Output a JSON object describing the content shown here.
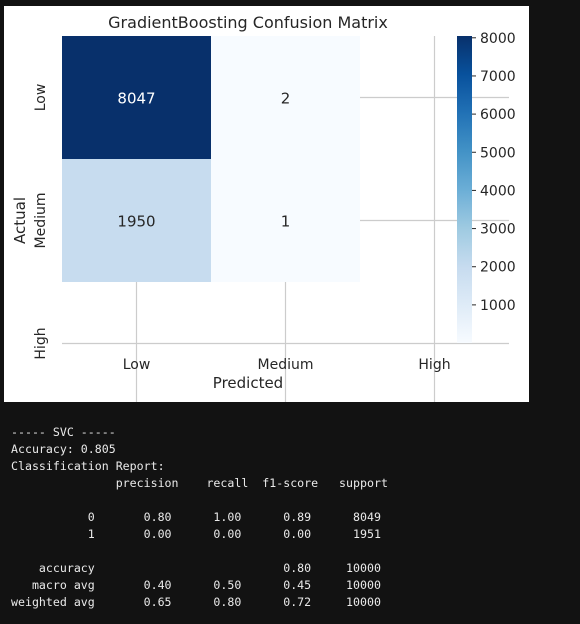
{
  "chart_data": {
    "type": "heatmap",
    "title": "GradientBoosting Confusion Matrix",
    "xlabel": "Predicted",
    "ylabel": "Actual",
    "x_categories": [
      "Low",
      "Medium",
      "High"
    ],
    "y_categories": [
      "Low",
      "Medium",
      "High"
    ],
    "cells": [
      {
        "row": "Low",
        "col": "Low",
        "value": 8047,
        "label": "8047"
      },
      {
        "row": "Low",
        "col": "Medium",
        "value": 2,
        "label": "2"
      },
      {
        "row": "Medium",
        "col": "Low",
        "value": 1950,
        "label": "1950"
      },
      {
        "row": "Medium",
        "col": "Medium",
        "value": 1,
        "label": "1"
      }
    ],
    "colorbar": {
      "colormap": "Blues",
      "min": 1,
      "max": 8047,
      "ticks": [
        1000,
        2000,
        3000,
        4000,
        5000,
        6000,
        7000,
        8000
      ],
      "tick_labels": [
        "1000",
        "2000",
        "3000",
        "4000",
        "5000",
        "6000",
        "7000",
        "8000"
      ]
    },
    "grid": true
  },
  "output": {
    "lines": [
      "----- SVC -----",
      "Accuracy: 0.805",
      "Classification Report:",
      "               precision    recall  f1-score   support",
      "",
      "           0       0.80      1.00      0.89      8049",
      "           1       0.00      0.00      0.00      1951",
      "",
      "    accuracy                           0.80     10000",
      "   macro avg       0.40      0.50      0.45     10000",
      "weighted avg       0.65      0.80      0.72     10000"
    ]
  }
}
